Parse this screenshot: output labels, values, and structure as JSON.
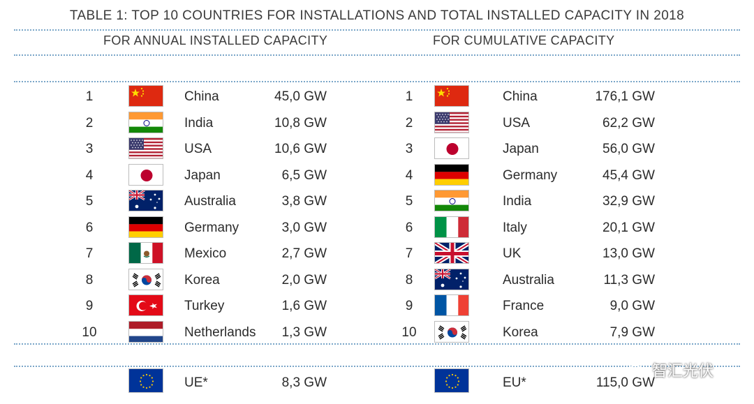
{
  "title": "TABLE 1: TOP 10 COUNTRIES FOR INSTALLATIONS AND TOTAL INSTALLED CAPACITY IN 2018",
  "annual": {
    "heading": "FOR ANNUAL INSTALLED CAPACITY",
    "rows": [
      {
        "rank": "1",
        "flag": "china-flag-icon",
        "country": "China",
        "value": "45,0 GW"
      },
      {
        "rank": "2",
        "flag": "india-flag-icon",
        "country": "India",
        "value": "10,8 GW"
      },
      {
        "rank": "3",
        "flag": "usa-flag-icon",
        "country": "USA",
        "value": "10,6 GW"
      },
      {
        "rank": "4",
        "flag": "japan-flag-icon",
        "country": "Japan",
        "value": "6,5 GW"
      },
      {
        "rank": "5",
        "flag": "australia-flag-icon",
        "country": "Australia",
        "value": "3,8 GW"
      },
      {
        "rank": "6",
        "flag": "germany-flag-icon",
        "country": "Germany",
        "value": "3,0 GW"
      },
      {
        "rank": "7",
        "flag": "mexico-flag-icon",
        "country": "Mexico",
        "value": "2,7 GW"
      },
      {
        "rank": "8",
        "flag": "korea-flag-icon",
        "country": "Korea",
        "value": "2,0 GW"
      },
      {
        "rank": "9",
        "flag": "turkey-flag-icon",
        "country": "Turkey",
        "value": "1,6 GW"
      },
      {
        "rank": "10",
        "flag": "netherlands-flag-icon",
        "country": "Netherlands",
        "value": "1,3 GW"
      }
    ],
    "total": {
      "flag": "eu-flag-icon",
      "country": "UE*",
      "value": "8,3 GW"
    }
  },
  "cumulative": {
    "heading": "FOR CUMULATIVE CAPACITY",
    "rows": [
      {
        "rank": "1",
        "flag": "china-flag-icon",
        "country": "China",
        "value": "176,1 GW"
      },
      {
        "rank": "2",
        "flag": "usa-flag-icon",
        "country": "USA",
        "value": "62,2 GW"
      },
      {
        "rank": "3",
        "flag": "japan-flag-icon",
        "country": "Japan",
        "value": "56,0 GW"
      },
      {
        "rank": "4",
        "flag": "germany-flag-icon",
        "country": "Germany",
        "value": "45,4 GW"
      },
      {
        "rank": "5",
        "flag": "india-flag-icon",
        "country": "India",
        "value": "32,9 GW"
      },
      {
        "rank": "6",
        "flag": "italy-flag-icon",
        "country": "Italy",
        "value": "20,1 GW"
      },
      {
        "rank": "7",
        "flag": "uk-flag-icon",
        "country": "UK",
        "value": "13,0 GW"
      },
      {
        "rank": "8",
        "flag": "australia-flag-icon",
        "country": "Australia",
        "value": "11,3 GW"
      },
      {
        "rank": "9",
        "flag": "france-flag-icon",
        "country": "France",
        "value": "9,0 GW"
      },
      {
        "rank": "10",
        "flag": "korea-flag-icon",
        "country": "Korea",
        "value": "7,9 GW"
      }
    ],
    "total": {
      "flag": "eu-flag-icon",
      "country": "EU*",
      "value": "115,0 GW"
    }
  },
  "watermark": {
    "text": "智汇光伏",
    "icon": "wechat-icon"
  },
  "colors": {
    "dotted_rule": "#7aa6c8"
  }
}
